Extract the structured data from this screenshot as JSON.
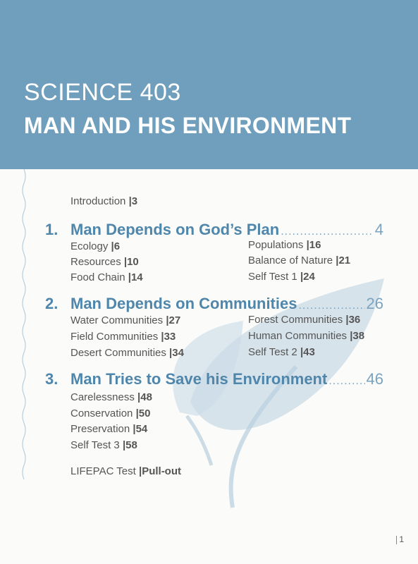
{
  "header": {
    "course_code": "SCIENCE 403",
    "course_title": "MAN AND HIS ENVIRONMENT"
  },
  "intro": {
    "label": "Introduction",
    "page": "3"
  },
  "units": [
    {
      "number": "1.",
      "title": "Man Depends on God’s Plan",
      "page": "4",
      "lessons": [
        {
          "label": "Ecology",
          "page": "6"
        },
        {
          "label": "Resources",
          "page": "10"
        },
        {
          "label": "Food Chain",
          "page": "14"
        },
        {
          "label": "Populations",
          "page": "16"
        },
        {
          "label": "Balance of Nature",
          "page": "21"
        },
        {
          "label": "Self Test 1",
          "page": "24"
        }
      ]
    },
    {
      "number": "2.",
      "title": "Man Depends on Communities",
      "page": "26",
      "lessons": [
        {
          "label": "Water Communities",
          "page": "27"
        },
        {
          "label": "Field Communities",
          "page": "33"
        },
        {
          "label": "Desert Communities",
          "page": "34"
        },
        {
          "label": "Forest Communities",
          "page": "36"
        },
        {
          "label": "Human Communities",
          "page": "38"
        },
        {
          "label": "Self Test 2",
          "page": "43"
        }
      ]
    },
    {
      "number": "3.",
      "title": "Man Tries to Save his Environment",
      "page": "46",
      "lessons": [
        {
          "label": "Carelessness",
          "page": "48"
        },
        {
          "label": "Conservation",
          "page": "50"
        },
        {
          "label": "Preservation",
          "page": "54"
        },
        {
          "label": "Self Test 3",
          "page": "58"
        }
      ]
    }
  ],
  "lifepac_test": {
    "label": "LIFEPAC Test",
    "page": "Pull-out"
  },
  "folio": "1",
  "colors": {
    "header": "#6f9fbd",
    "unit": "#4f86ab",
    "leaf": "#c9dbe6"
  }
}
